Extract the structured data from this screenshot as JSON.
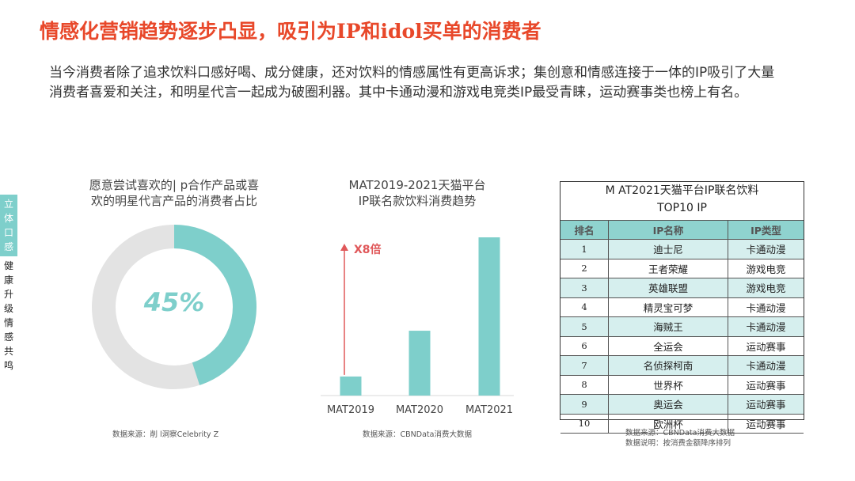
{
  "header": {
    "title": "情感化营销趋势逐步凸显，吸引为IP和idol买单的消费者",
    "intro": "当今消费者除了追求饮料口感好喝、成分健康，还对饮料的情感属性有更高诉求；集创意和情感连接于一体的IP吸引了大量消费者喜爱和关注，和明星代言一起成为破圈利器。其中卡通动漫和游戏电竞类IP最受青睐，运动赛事类也榜上有名。"
  },
  "sidebar": {
    "highlight": "立体口感",
    "rest": "健康升级情感共鸣"
  },
  "colors": {
    "accent": "#7ecfcb",
    "title": "#e8482a",
    "track": "#e3e3e3",
    "arrow": "#e0585a"
  },
  "chart_data": [
    {
      "type": "pie",
      "title_lines": [
        "愿意尝试喜欢的| p合作产品或喜",
        "欢的明星代言产品的消费者占比"
      ],
      "values": [
        45,
        55
      ],
      "value_label": "45%",
      "source": "数据来源：削 l洞察Celebrity Z"
    },
    {
      "type": "bar",
      "title_lines": [
        "MAT2019-2021天猫平台",
        "IP联名款饮料消费趋势"
      ],
      "categories": [
        "MAT2019",
        "MAT2020",
        "MAT2021"
      ],
      "values": [
        1,
        3.4,
        8.3
      ],
      "annotation": "X8倍",
      "source": "数据来源：CBNData消费大数据"
    },
    {
      "type": "table",
      "title_lines": [
        "M AT2021天猫平台IP联名饮料",
        "TOP10 IP"
      ],
      "columns": [
        "排名",
        "IP名称",
        "IP类型"
      ],
      "rows": [
        [
          "1",
          "迪士尼",
          "卡通动漫"
        ],
        [
          "2",
          "王者荣耀",
          "游戏电竞"
        ],
        [
          "3",
          "英雄联盟",
          "游戏电竞"
        ],
        [
          "4",
          "精灵宝可梦",
          "卡通动漫"
        ],
        [
          "5",
          "海贼王",
          "卡通动漫"
        ],
        [
          "6",
          "全运会",
          "运动赛事"
        ],
        [
          "7",
          "名侦探柯南",
          "卡通动漫"
        ],
        [
          "8",
          "世界杯",
          "运动赛事"
        ],
        [
          "9",
          "奥运会",
          "运动赛事"
        ],
        [
          "10",
          "欧洲杯",
          "运动赛事"
        ]
      ],
      "source_lines": [
        "数据来源：CBNData消费大数据",
        "数据说明：按消费金额降序排列"
      ]
    }
  ]
}
